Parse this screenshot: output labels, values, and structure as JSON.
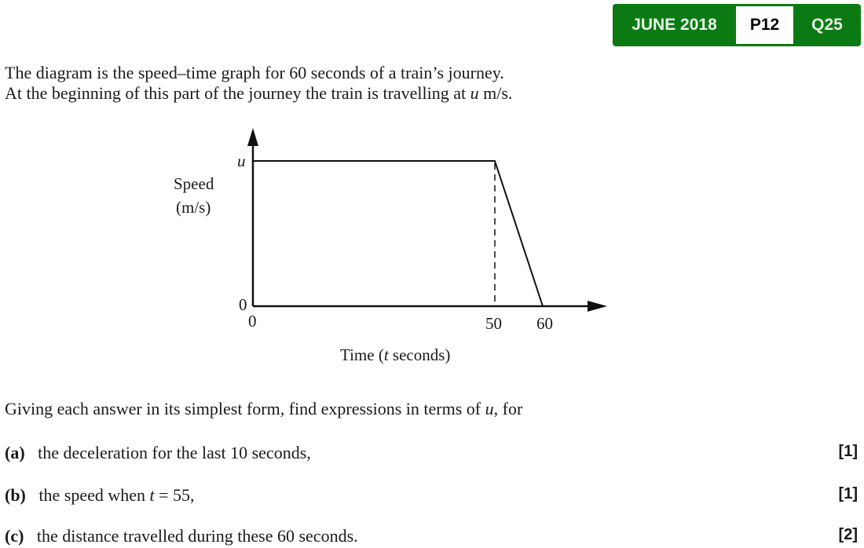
{
  "badge": {
    "session": "JUNE 2018",
    "paper": "P12",
    "question": "Q25",
    "color": "#0b7a12"
  },
  "intro": {
    "line1": "The diagram is the speed–time graph for 60 seconds of a train’s journey.",
    "line2_pre": "At the beginning of this part of the journey the train is travelling at ",
    "line2_var": "u",
    "line2_post": " m/s."
  },
  "graph": {
    "y_label_1": "Speed",
    "y_label_2": "(m/s)",
    "y_tick_u": "u",
    "y_tick_0": "0",
    "x_ticks": [
      "0",
      "50",
      "60"
    ],
    "x_label_pre": "Time (",
    "x_label_var": "t",
    "x_label_post": " seconds)",
    "points": [
      [
        0,
        "u"
      ],
      [
        50,
        "u"
      ],
      [
        60,
        0
      ]
    ]
  },
  "instruction": {
    "pre": "Giving each answer in its simplest form, find expressions in terms of ",
    "var": "u",
    "post": ", for"
  },
  "parts": [
    {
      "label": "(a)",
      "text": "the deceleration for the last 10 seconds,",
      "marks": "[1]"
    },
    {
      "label": "(b)",
      "text_pre": "the speed when ",
      "var": "t",
      "text_post": " = 55,",
      "marks": "[1]"
    },
    {
      "label": "(c)",
      "text": "the distance travelled during these 60 seconds.",
      "marks": "[2]"
    }
  ]
}
